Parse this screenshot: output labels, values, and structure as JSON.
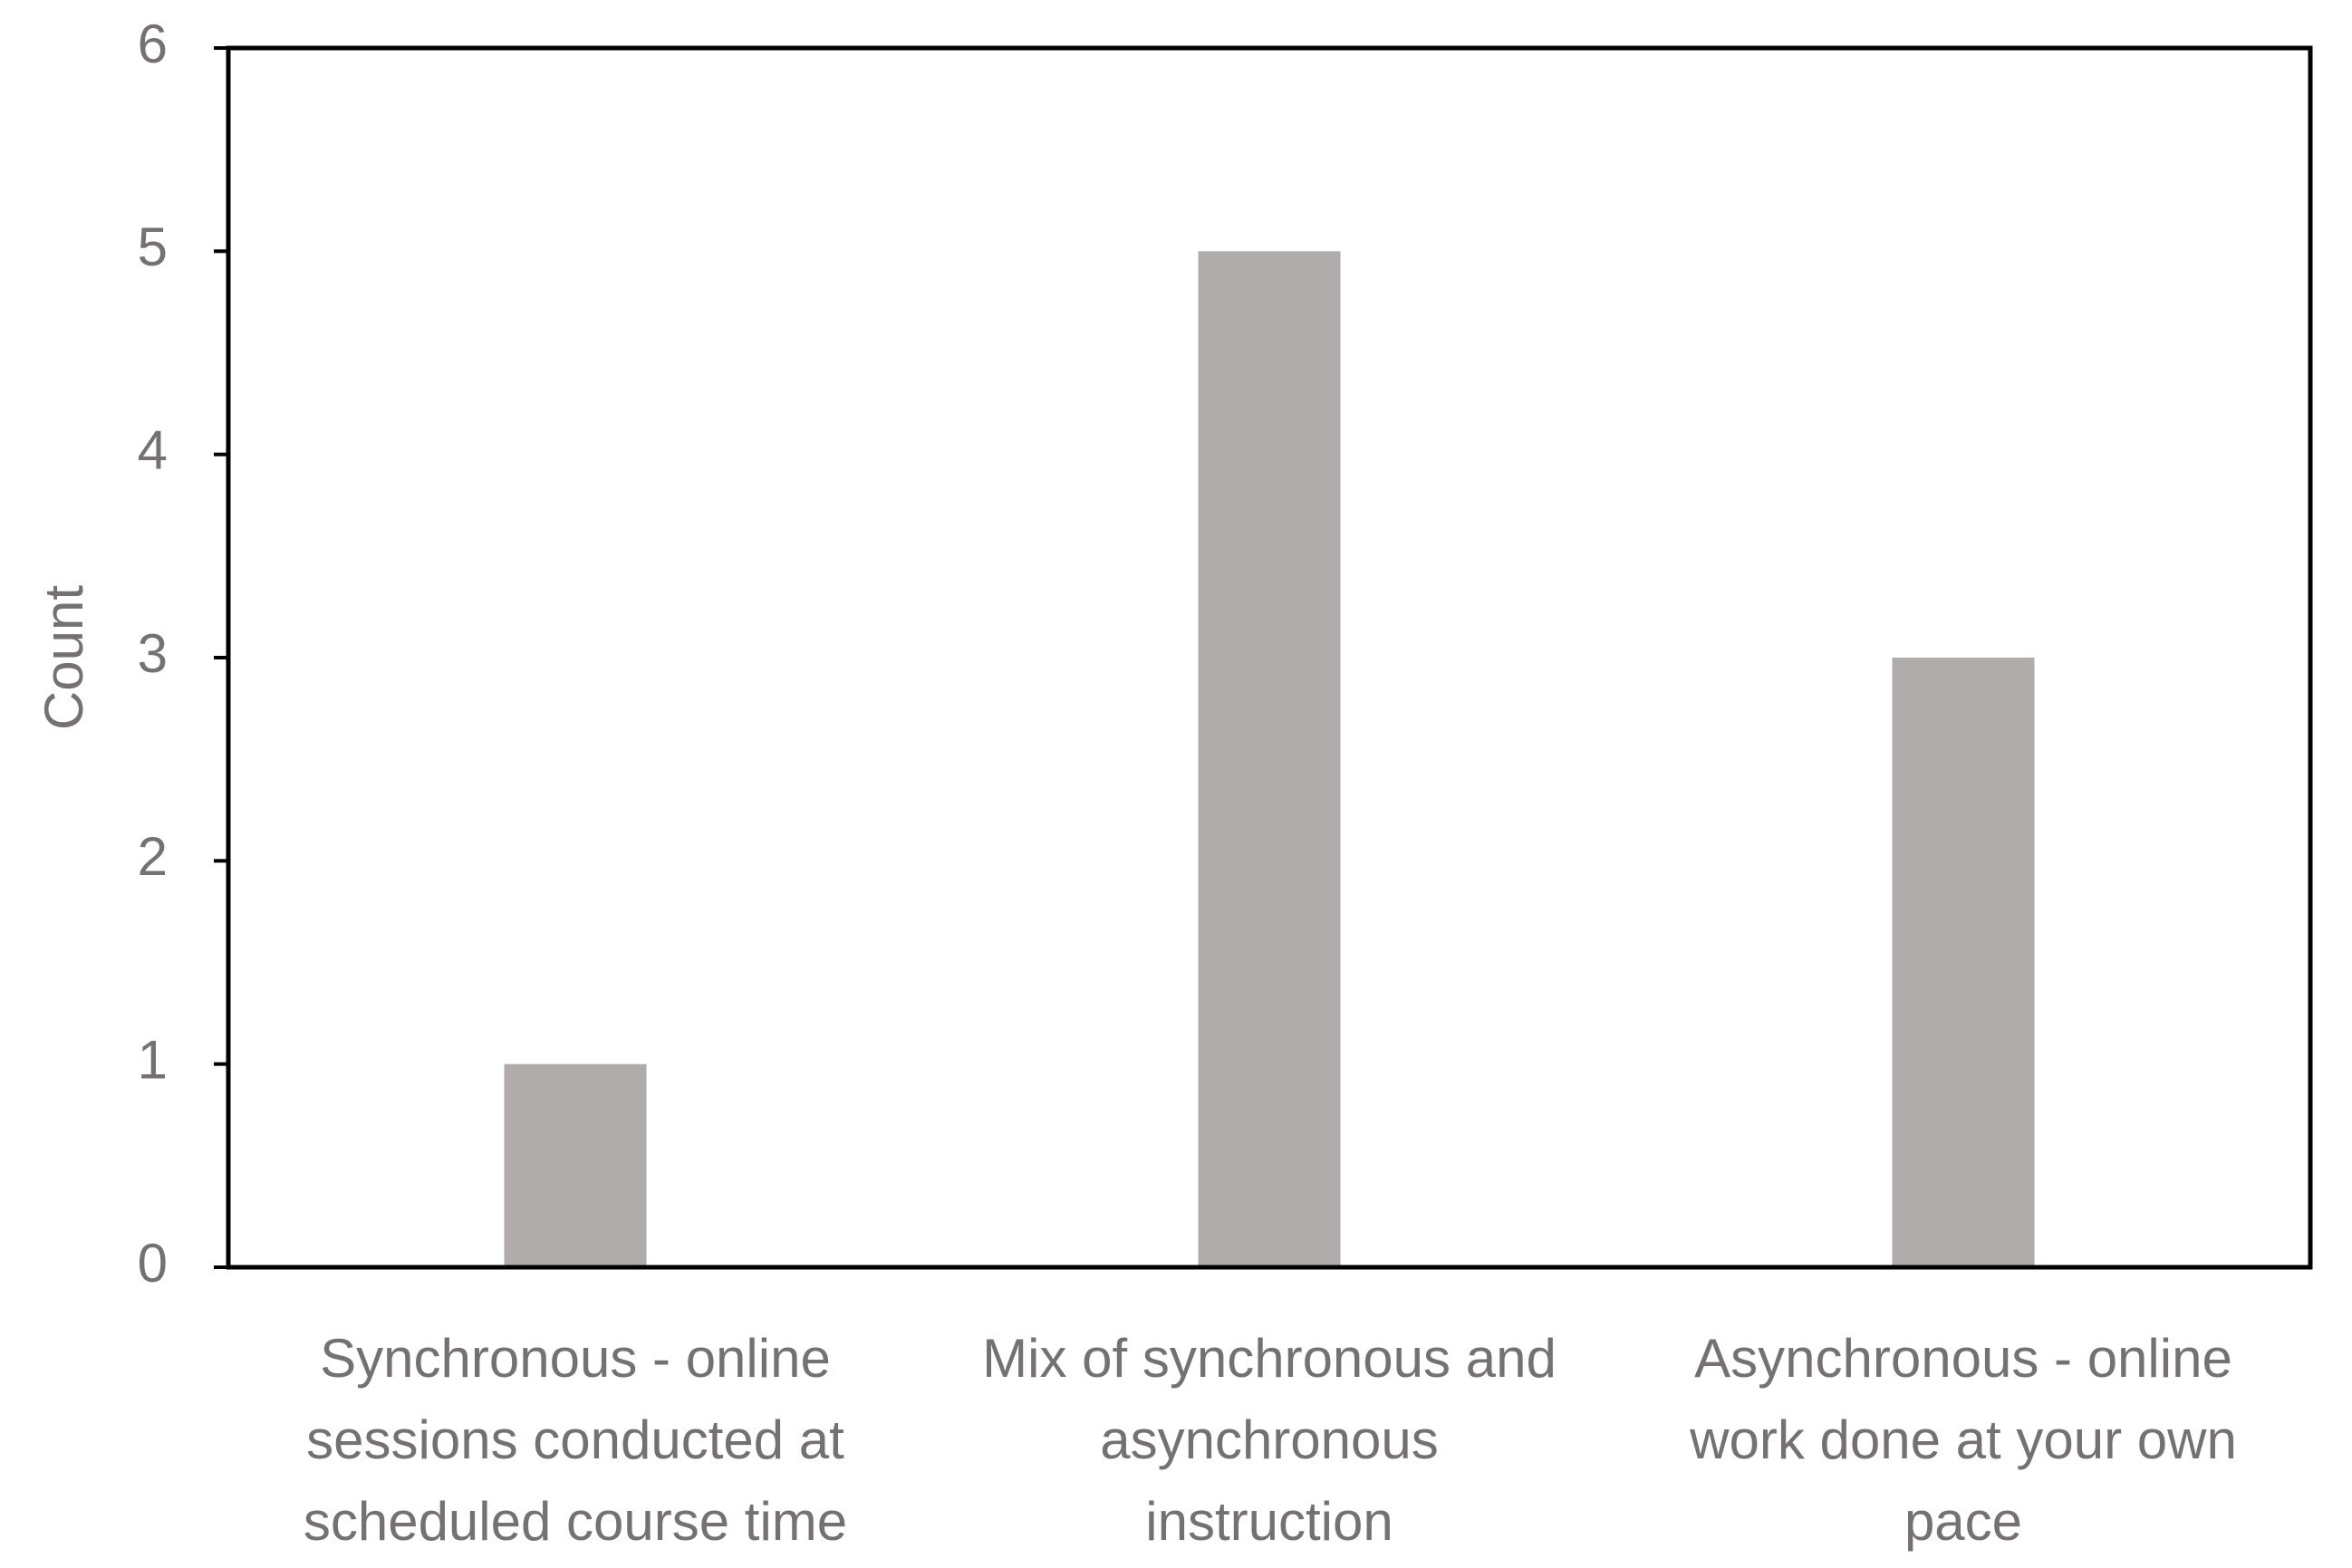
{
  "chart_data": {
    "type": "bar",
    "y_label": "Count",
    "categories": [
      "Synchronous - online\nsessions conducted at\nscheduled course time",
      "Mix of synchronous and\nasynchronous\ninstruction",
      "Asynchronous - online\nwork done at your own\npace"
    ],
    "values": [
      1,
      5,
      3
    ],
    "color": "#b0acab",
    "ylim": [
      0,
      6
    ],
    "yticks": [
      0,
      1,
      2,
      3,
      4,
      5,
      6
    ]
  }
}
